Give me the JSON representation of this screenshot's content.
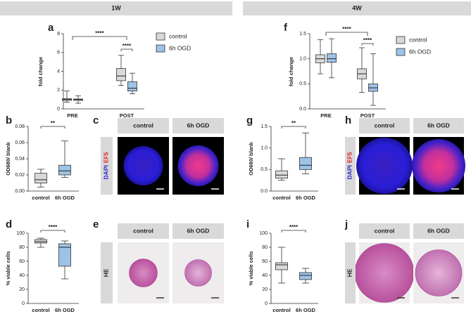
{
  "headers": [
    "1W",
    "4W"
  ],
  "chart_data": [
    {
      "type": "box",
      "panel": "a",
      "y_label": "fold change",
      "categories": [
        "PRE",
        "POST"
      ],
      "series": [
        {
          "name": "control",
          "color": "#d9d9d9",
          "boxes": [
            {
              "min": 0.7,
              "q1": 0.9,
              "median": 1.0,
              "q3": 1.1,
              "max": 1.9
            },
            {
              "min": 2.5,
              "q1": 3.0,
              "median": 3.5,
              "q3": 4.3,
              "max": 5.7
            }
          ]
        },
        {
          "name": "6h OGD",
          "color": "#9dc3e6",
          "boxes": [
            {
              "min": 0.6,
              "q1": 0.9,
              "median": 1.0,
              "q3": 1.05,
              "max": 1.4
            },
            {
              "min": 1.6,
              "q1": 1.9,
              "median": 2.2,
              "q3": 2.9,
              "max": 3.8
            }
          ]
        }
      ],
      "ylim": [
        0,
        8
      ],
      "yticks": [
        0,
        2,
        4,
        6,
        8
      ],
      "annotations": [
        "****",
        "****"
      ]
    },
    {
      "type": "box",
      "panel": "f",
      "y_label": "fold change",
      "categories": [
        "PRE",
        "POST"
      ],
      "series": [
        {
          "name": "control",
          "color": "#d9d9d9",
          "boxes": [
            {
              "min": 0.7,
              "q1": 0.92,
              "median": 1.0,
              "q3": 1.08,
              "max": 1.38
            },
            {
              "min": 0.33,
              "q1": 0.6,
              "median": 0.7,
              "q3": 0.8,
              "max": 1.22
            }
          ]
        },
        {
          "name": "6h OGD",
          "color": "#9dc3e6",
          "boxes": [
            {
              "min": 0.62,
              "q1": 0.93,
              "median": 1.0,
              "q3": 1.1,
              "max": 1.4
            },
            {
              "min": 0.07,
              "q1": 0.35,
              "median": 0.42,
              "q3": 0.5,
              "max": 1.1
            }
          ]
        }
      ],
      "ylim": [
        0,
        1.5
      ],
      "yticks": [
        {
          "value": 0,
          "label": "0.0"
        },
        {
          "value": 0.5,
          "label": "0.5"
        },
        {
          "value": 1,
          "label": "1.0"
        },
        {
          "value": 1.5,
          "label": "1.5"
        }
      ],
      "annotations": [
        "****",
        "****"
      ]
    },
    {
      "type": "box",
      "panel": "b",
      "y_label": "OD680/ blank",
      "categories": [
        "control",
        "6h OGD"
      ],
      "colors": [
        "#d9d9d9",
        "#9dc3e6"
      ],
      "boxes": [
        {
          "min": 0.005,
          "q1": 0.01,
          "median": 0.014,
          "q3": 0.022,
          "max": 0.027
        },
        {
          "min": 0.017,
          "q1": 0.02,
          "median": 0.025,
          "q3": 0.032,
          "max": 0.062
        }
      ],
      "ylim": [
        0,
        0.08
      ],
      "yticks": [
        {
          "value": 0,
          "label": "0.00"
        },
        {
          "value": 0.02,
          "label": "0.02"
        },
        {
          "value": 0.04,
          "label": "0.04"
        },
        {
          "value": 0.06,
          "label": "0.06"
        },
        {
          "value": 0.08,
          "label": "0.08"
        }
      ],
      "annotations": [
        "**"
      ]
    },
    {
      "type": "box",
      "panel": "d",
      "y_label": "% viable cells",
      "categories": [
        "control",
        "6h OGD"
      ],
      "colors": [
        "#d9d9d9",
        "#9dc3e6"
      ],
      "boxes": [
        {
          "min": 80,
          "q1": 86,
          "median": 88,
          "q3": 91,
          "max": 93
        },
        {
          "min": 35,
          "q1": 53,
          "median": 80,
          "q3": 85,
          "max": 89
        }
      ],
      "ylim": [
        0,
        100
      ],
      "yticks": [
        0,
        20,
        40,
        60,
        80,
        100
      ],
      "annotations": [
        "****"
      ]
    },
    {
      "type": "box",
      "panel": "g",
      "y_label": "OD680/ blank",
      "categories": [
        "control",
        "6h OGD"
      ],
      "colors": [
        "#d9d9d9",
        "#9dc3e6"
      ],
      "boxes": [
        {
          "min": 0.25,
          "q1": 0.3,
          "median": 0.37,
          "q3": 0.47,
          "max": 0.75
        },
        {
          "min": 0.4,
          "q1": 0.5,
          "median": 0.6,
          "q3": 0.78,
          "max": 1.35
        }
      ],
      "ylim": [
        0,
        1.5
      ],
      "yticks": [
        {
          "value": 0,
          "label": "0.0"
        },
        {
          "value": 0.5,
          "label": "0.5"
        },
        {
          "value": 1,
          "label": "1.0"
        },
        {
          "value": 1.5,
          "label": "1.5"
        }
      ],
      "annotations": [
        "**"
      ]
    },
    {
      "type": "box",
      "panel": "i",
      "y_label": "% viable cells",
      "categories": [
        "control",
        "6h OGD"
      ],
      "colors": [
        "#d9d9d9",
        "#9dc3e6"
      ],
      "boxes": [
        {
          "min": 29,
          "q1": 48,
          "median": 55,
          "q3": 58,
          "max": 80
        },
        {
          "min": 29,
          "q1": 34,
          "median": 40,
          "q3": 44,
          "max": 50
        }
      ],
      "ylim": [
        0,
        100
      ],
      "yticks": [
        0,
        20,
        40,
        60,
        80,
        100
      ],
      "annotations": [
        "****"
      ]
    }
  ],
  "image_panels": [
    {
      "panel": "c",
      "columns": [
        "control",
        "6h OGD"
      ],
      "row_label": [
        "DAPI",
        "EF5"
      ]
    },
    {
      "panel": "e",
      "columns": [
        "control",
        "6h OGD"
      ],
      "row_label": [
        "HE"
      ]
    },
    {
      "panel": "h",
      "columns": [
        "control",
        "6h OGD"
      ],
      "row_label": [
        "DAPI",
        "EF5"
      ]
    },
    {
      "panel": "j",
      "columns": [
        "control",
        "6h OGD"
      ],
      "row_label": [
        "HE"
      ]
    }
  ]
}
